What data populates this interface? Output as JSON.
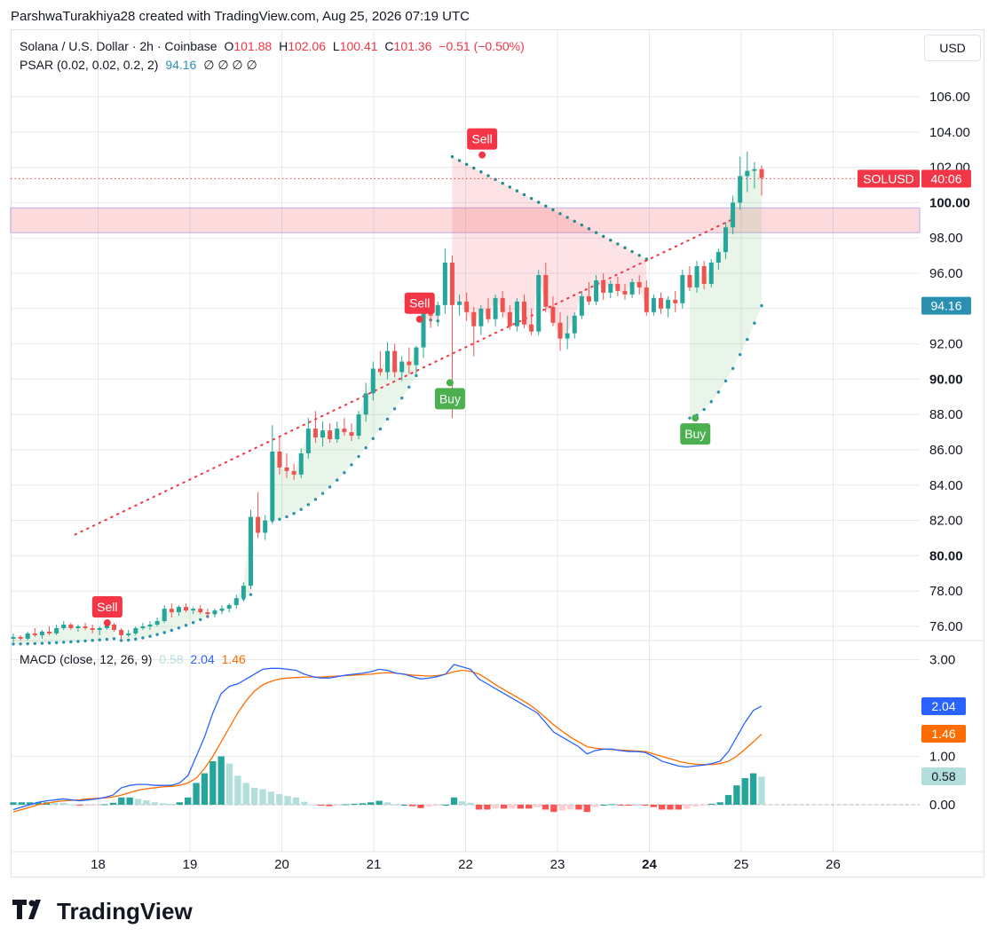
{
  "attribution": "ParshwaTurakhiya28 created with TradingView.com, Aug 25, 2026 07:19 UTC",
  "legend": {
    "symbol": "Solana / U.S. Dollar · 2h · Coinbase",
    "o_label": "O",
    "o_val": "101.88",
    "h_label": "H",
    "h_val": "102.06",
    "l_label": "L",
    "l_val": "100.41",
    "c_label": "C",
    "c_val": "101.36",
    "change": "−0.51 (−0.50%)",
    "psar_label": "PSAR (0.02, 0.02, 0.2, 2)",
    "psar_val": "94.16",
    "psar_empty": "∅ ∅ ∅ ∅",
    "macd_label": "MACD (close, 12, 26, 9)",
    "macd_hist": "0.58",
    "macd_line": "2.04",
    "macd_signal": "1.46"
  },
  "currency": "USD",
  "brand": "TradingView",
  "colors": {
    "up": "#26a69a",
    "down": "#ef5350",
    "macd_line": "#2962ff",
    "signal_line": "#ff6d00",
    "psar_up": "#2b8fb0",
    "sell": "#f23645",
    "buy": "#4caf50"
  },
  "chart_data": [
    {
      "type": "candlestick",
      "x_ticks": [
        "18",
        "19",
        "20",
        "21",
        "22",
        "23",
        "24",
        "25",
        "26"
      ],
      "y_ticks": [
        "76.00",
        "78.00",
        "80.00",
        "82.00",
        "84.00",
        "86.00",
        "88.00",
        "90.00",
        "92.00",
        "94.00",
        "96.00",
        "98.00",
        "100.00",
        "102.00",
        "104.00",
        "106.00"
      ],
      "ylim": [
        75.3,
        108.6
      ],
      "price_label": {
        "symbol": "SOLUSD",
        "countdown": "40:06",
        "value": 101.36
      },
      "psar_label": {
        "text": "94.16",
        "value": 94.16
      },
      "resistance_zone": [
        98.3,
        99.7
      ],
      "trendline": {
        "from_day": 17.75,
        "from_price": 81.2,
        "to_day": 24.4,
        "to_price": 98.5
      },
      "signals": [
        {
          "label": "Sell",
          "day": 18.1,
          "price": 76.2
        },
        {
          "label": "Sell",
          "day": 21.5,
          "price": 93.4
        },
        {
          "label": "Buy",
          "day": 21.83,
          "price": 89.8
        },
        {
          "label": "Sell",
          "day": 22.18,
          "price": 102.7
        },
        {
          "label": "Buy",
          "day": 24.5,
          "price": 87.8
        }
      ],
      "ohlc": [
        [
          75.3,
          75.6,
          75.1,
          75.4
        ],
        [
          75.4,
          75.5,
          75.2,
          75.3
        ],
        [
          75.3,
          75.7,
          75.2,
          75.6
        ],
        [
          75.6,
          75.9,
          75.4,
          75.5
        ],
        [
          75.5,
          75.8,
          75.3,
          75.7
        ],
        [
          75.7,
          76.0,
          75.5,
          75.6
        ],
        [
          75.6,
          76.1,
          75.5,
          75.9
        ],
        [
          75.9,
          76.3,
          75.8,
          76.1
        ],
        [
          76.1,
          76.2,
          75.8,
          75.9
        ],
        [
          75.9,
          76.1,
          75.7,
          76.0
        ],
        [
          76.0,
          76.2,
          75.8,
          75.9
        ],
        [
          75.9,
          76.1,
          75.6,
          75.8
        ],
        [
          75.8,
          76.0,
          75.5,
          75.9
        ],
        [
          75.9,
          76.3,
          75.8,
          76.1
        ],
        [
          76.1,
          76.2,
          75.7,
          75.8
        ],
        [
          75.8,
          75.9,
          75.3,
          75.5
        ],
        [
          75.5,
          75.8,
          75.4,
          75.6
        ],
        [
          75.6,
          76.0,
          75.5,
          75.9
        ],
        [
          75.9,
          76.2,
          75.8,
          76.0
        ],
        [
          76.0,
          76.3,
          75.8,
          76.1
        ],
        [
          76.1,
          76.5,
          76.0,
          76.3
        ],
        [
          76.3,
          77.2,
          76.2,
          77.0
        ],
        [
          77.0,
          77.3,
          76.5,
          76.8
        ],
        [
          76.8,
          77.2,
          76.6,
          77.1
        ],
        [
          77.1,
          77.3,
          76.8,
          76.9
        ],
        [
          76.9,
          77.1,
          76.7,
          77.0
        ],
        [
          77.0,
          77.2,
          76.7,
          76.8
        ],
        [
          76.8,
          77.0,
          76.5,
          76.7
        ],
        [
          76.7,
          77.0,
          76.5,
          76.9
        ],
        [
          76.9,
          77.2,
          76.7,
          77.0
        ],
        [
          77.0,
          77.3,
          76.8,
          77.2
        ],
        [
          77.2,
          77.8,
          77.0,
          77.6
        ],
        [
          77.6,
          78.5,
          77.4,
          78.3
        ],
        [
          78.3,
          82.6,
          78.1,
          82.2
        ],
        [
          82.2,
          83.6,
          81.0,
          81.3
        ],
        [
          81.3,
          82.3,
          80.9,
          82.0
        ],
        [
          82.0,
          87.4,
          81.8,
          85.9
        ],
        [
          85.9,
          86.8,
          84.6,
          85.0
        ],
        [
          85.0,
          85.8,
          84.4,
          84.8
        ],
        [
          84.8,
          85.2,
          84.3,
          84.6
        ],
        [
          84.6,
          86.1,
          84.4,
          85.8
        ],
        [
          85.8,
          87.8,
          85.5,
          87.2
        ],
        [
          87.2,
          88.2,
          86.4,
          86.7
        ],
        [
          86.7,
          87.6,
          86.2,
          87.1
        ],
        [
          87.1,
          87.5,
          86.4,
          86.6
        ],
        [
          86.6,
          87.6,
          86.4,
          87.2
        ],
        [
          87.2,
          87.8,
          86.8,
          87.0
        ],
        [
          87.0,
          87.5,
          86.5,
          86.8
        ],
        [
          86.8,
          88.2,
          86.6,
          88.0
        ],
        [
          88.0,
          89.8,
          87.6,
          89.2
        ],
        [
          89.2,
          91.0,
          88.8,
          90.6
        ],
        [
          90.6,
          91.6,
          90.2,
          90.4
        ],
        [
          90.4,
          92.1,
          90.0,
          91.6
        ],
        [
          91.6,
          92.0,
          90.1,
          90.4
        ],
        [
          90.4,
          91.3,
          89.9,
          91.0
        ],
        [
          91.0,
          91.8,
          90.3,
          90.8
        ],
        [
          90.8,
          91.9,
          90.2,
          91.8
        ],
        [
          91.8,
          94.1,
          91.2,
          93.8
        ],
        [
          93.8,
          94.9,
          92.9,
          93.6
        ],
        [
          93.6,
          94.4,
          93.0,
          94.2
        ],
        [
          94.2,
          97.4,
          93.7,
          96.6
        ],
        [
          96.6,
          97.0,
          87.8,
          94.2
        ],
        [
          94.2,
          94.8,
          93.6,
          94.4
        ],
        [
          94.4,
          94.9,
          93.3,
          93.8
        ],
        [
          93.8,
          94.1,
          91.3,
          93.0
        ],
        [
          93.0,
          94.2,
          92.5,
          94.0
        ],
        [
          94.0,
          94.6,
          93.2,
          93.4
        ],
        [
          93.4,
          94.8,
          93.0,
          94.6
        ],
        [
          94.6,
          95.0,
          93.5,
          93.8
        ],
        [
          93.8,
          94.2,
          92.8,
          93.0
        ],
        [
          93.0,
          94.6,
          92.7,
          94.4
        ],
        [
          94.4,
          94.8,
          92.9,
          93.1
        ],
        [
          93.1,
          94.0,
          92.5,
          92.7
        ],
        [
          92.7,
          96.2,
          92.5,
          95.9
        ],
        [
          95.9,
          96.6,
          93.8,
          94.1
        ],
        [
          94.1,
          94.7,
          93.0,
          93.2
        ],
        [
          93.2,
          93.8,
          91.6,
          92.3
        ],
        [
          92.3,
          93.6,
          91.7,
          92.6
        ],
        [
          92.6,
          93.8,
          92.3,
          93.6
        ],
        [
          93.6,
          95.0,
          93.4,
          94.7
        ],
        [
          94.7,
          95.5,
          94.2,
          94.4
        ],
        [
          94.4,
          95.9,
          94.2,
          95.6
        ],
        [
          95.6,
          96.0,
          94.5,
          94.9
        ],
        [
          94.9,
          95.6,
          94.6,
          95.4
        ],
        [
          95.4,
          95.8,
          94.7,
          95.0
        ],
        [
          95.0,
          95.4,
          94.5,
          94.8
        ],
        [
          94.8,
          95.7,
          94.6,
          95.5
        ],
        [
          95.5,
          95.9,
          94.8,
          95.2
        ],
        [
          95.2,
          95.6,
          93.6,
          93.8
        ],
        [
          93.8,
          94.8,
          93.6,
          94.6
        ],
        [
          94.6,
          94.9,
          93.7,
          94.0
        ],
        [
          94.0,
          94.7,
          93.5,
          94.5
        ],
        [
          94.5,
          95.0,
          93.8,
          94.3
        ],
        [
          94.3,
          96.2,
          94.0,
          95.9
        ],
        [
          95.9,
          96.4,
          95.0,
          95.2
        ],
        [
          95.2,
          96.7,
          94.9,
          96.4
        ],
        [
          96.4,
          96.7,
          95.1,
          95.4
        ],
        [
          95.4,
          96.8,
          95.2,
          96.6
        ],
        [
          96.6,
          97.4,
          96.2,
          97.2
        ],
        [
          97.2,
          98.9,
          96.8,
          98.6
        ],
        [
          98.6,
          100.4,
          98.2,
          100.0
        ],
        [
          100.0,
          102.6,
          99.6,
          101.5
        ],
        [
          101.5,
          102.9,
          100.6,
          101.8
        ],
        [
          101.8,
          102.3,
          100.8,
          101.9
        ],
        [
          101.9,
          102.1,
          100.4,
          101.4
        ]
      ],
      "psar_dots": [
        {
          "from": 0,
          "to": 14,
          "start": 75.0,
          "end": 75.3,
          "side": "below"
        },
        {
          "from": 15,
          "to": 33,
          "start": 75.2,
          "end": 77.8,
          "side": "below"
        },
        {
          "from": 36,
          "to": 56,
          "start": 82.0,
          "end": 90.2,
          "side": "below"
        },
        {
          "from": 57,
          "to": 59,
          "start": 93.4,
          "end": 93.3,
          "side": "above"
        },
        {
          "from": 61,
          "to": 88,
          "start": 102.6,
          "end": 96.8,
          "side": "above"
        },
        {
          "from": 94,
          "to": 104,
          "start": 87.8,
          "end": 94.16,
          "side": "below"
        }
      ]
    },
    {
      "type": "macd",
      "y_ticks": [
        "0.00",
        "1.00",
        "3.00"
      ],
      "ylim": [
        -0.55,
        3.15
      ],
      "value_tags": [
        {
          "value": 2.04,
          "text": "2.04"
        },
        {
          "value": 1.46,
          "text": "1.46"
        },
        {
          "value": 0.58,
          "text": "0.58"
        }
      ],
      "macd": [
        -0.1,
        -0.05,
        0.0,
        0.05,
        0.08,
        0.1,
        0.12,
        0.1,
        0.08,
        0.1,
        0.12,
        0.15,
        0.2,
        0.35,
        0.4,
        0.42,
        0.42,
        0.4,
        0.4,
        0.4,
        0.45,
        0.6,
        1.0,
        1.4,
        1.9,
        2.3,
        2.45,
        2.5,
        2.6,
        2.7,
        2.8,
        2.82,
        2.82,
        2.8,
        2.78,
        2.7,
        2.65,
        2.62,
        2.62,
        2.65,
        2.68,
        2.7,
        2.72,
        2.75,
        2.8,
        2.78,
        2.72,
        2.7,
        2.65,
        2.6,
        2.62,
        2.65,
        2.7,
        2.9,
        2.85,
        2.8,
        2.6,
        2.5,
        2.4,
        2.3,
        2.2,
        2.1,
        2.0,
        1.9,
        1.7,
        1.5,
        1.4,
        1.3,
        1.2,
        1.05,
        1.12,
        1.15,
        1.15,
        1.12,
        1.1,
        1.1,
        1.08,
        1.0,
        0.9,
        0.85,
        0.8,
        0.78,
        0.8,
        0.82,
        0.85,
        0.9,
        1.1,
        1.4,
        1.7,
        1.95,
        2.04
      ],
      "signal": [
        -0.15,
        -0.1,
        -0.05,
        0.0,
        0.03,
        0.06,
        0.08,
        0.09,
        0.1,
        0.12,
        0.13,
        0.14,
        0.16,
        0.2,
        0.25,
        0.3,
        0.33,
        0.35,
        0.37,
        0.38,
        0.4,
        0.45,
        0.55,
        0.75,
        1.0,
        1.3,
        1.6,
        1.9,
        2.15,
        2.35,
        2.48,
        2.55,
        2.6,
        2.62,
        2.63,
        2.64,
        2.64,
        2.64,
        2.65,
        2.66,
        2.67,
        2.68,
        2.69,
        2.7,
        2.72,
        2.73,
        2.72,
        2.7,
        2.68,
        2.67,
        2.66,
        2.67,
        2.7,
        2.75,
        2.78,
        2.76,
        2.7,
        2.6,
        2.48,
        2.38,
        2.28,
        2.18,
        2.08,
        1.95,
        1.8,
        1.65,
        1.52,
        1.4,
        1.3,
        1.2,
        1.17,
        1.15,
        1.14,
        1.13,
        1.12,
        1.11,
        1.1,
        1.05,
        1.0,
        0.95,
        0.9,
        0.86,
        0.84,
        0.83,
        0.83,
        0.85,
        0.9,
        1.0,
        1.15,
        1.3,
        1.46
      ]
    }
  ]
}
